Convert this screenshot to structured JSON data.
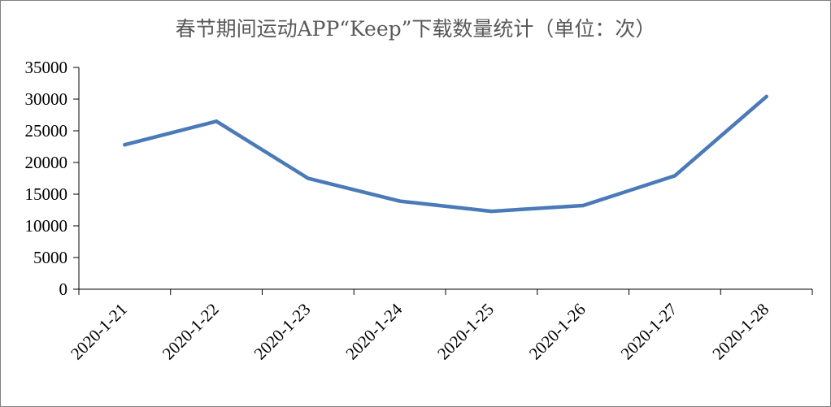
{
  "chart_data": {
    "type": "line",
    "title": "春节期间运动APP“Keep”下载数量统计（单位：次）",
    "xlabel": "",
    "ylabel": "",
    "categories": [
      "2020-1-21",
      "2020-1-22",
      "2020-1-23",
      "2020-1-24",
      "2020-1-25",
      "2020-1-26",
      "2020-1-27",
      "2020-1-28"
    ],
    "series": [
      {
        "values": [
          22800,
          26500,
          17500,
          13900,
          12300,
          13200,
          17900,
          30400
        ]
      }
    ],
    "ylim": [
      0,
      35000
    ],
    "yticks": [
      "0",
      "5000",
      "10000",
      "15000",
      "20000",
      "25000",
      "30000",
      "35000"
    ],
    "grid": false,
    "legend": "none",
    "colors": {
      "line": "#4a7ab8",
      "axis": "#000000",
      "title": "#595959"
    }
  }
}
